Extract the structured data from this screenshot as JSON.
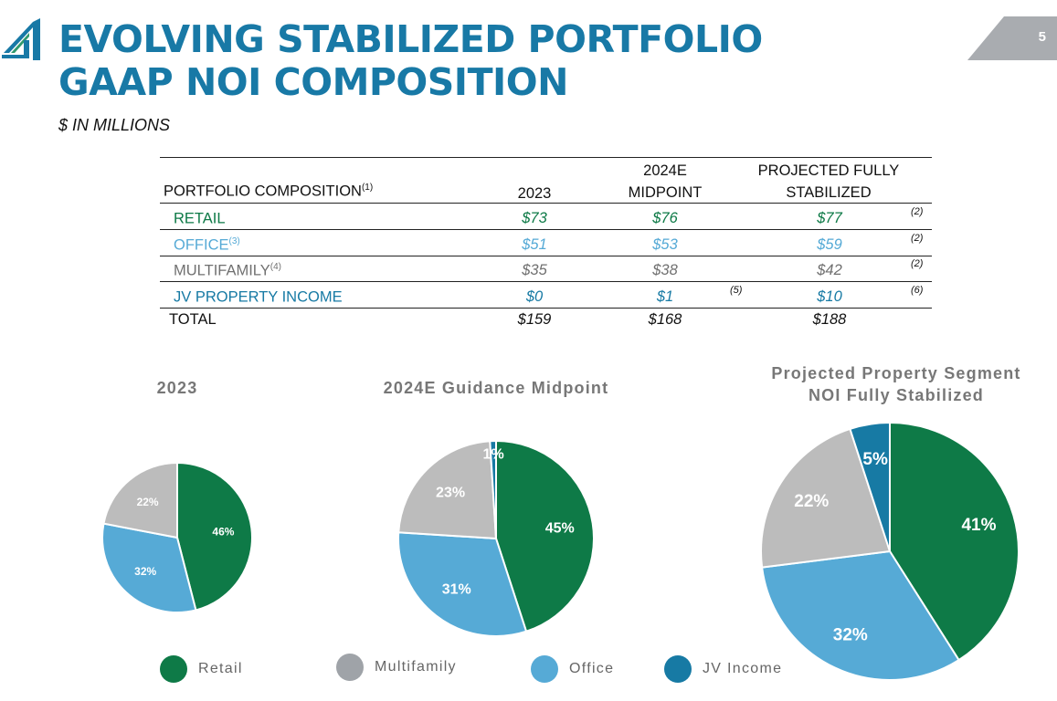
{
  "header": {
    "title_line1": "EVOLVING STABILIZED PORTFOLIO",
    "title_line2": "GAAP NOI COMPOSITION",
    "subtitle": "$ IN MILLIONS",
    "page_number": "5"
  },
  "logo": {
    "icon": "company-logo-icon",
    "color": "#1879a6"
  },
  "table": {
    "headers": {
      "label": "PORTFOLIO COMPOSITION",
      "label_note": "(1)",
      "col_2023": "2023",
      "col_2024_line1": "2024E",
      "col_2024_line2": "MIDPOINT",
      "col_proj_line1": "PROJECTED FULLY",
      "col_proj_line2": "STABILIZED"
    },
    "rows": [
      {
        "label": "RETAIL",
        "sup": "",
        "v2023": "$73",
        "v2024": "$76",
        "v2024_note": "",
        "vproj": "$77",
        "vproj_note": "(2)"
      },
      {
        "label": "OFFICE",
        "sup": "(3)",
        "v2023": "$51",
        "v2024": "$53",
        "v2024_note": "",
        "vproj": "$59",
        "vproj_note": "(2)"
      },
      {
        "label": "MULTIFAMILY",
        "sup": "(4)",
        "v2023": "$35",
        "v2024": "$38",
        "v2024_note": "",
        "vproj": "$42",
        "vproj_note": "(2)"
      },
      {
        "label": "JV PROPERTY INCOME",
        "sup": "",
        "v2023": "$0",
        "v2024": "$1",
        "v2024_note": "(5)",
        "vproj": "$10",
        "vproj_note": "(6)"
      }
    ],
    "total": {
      "label": "TOTAL",
      "v2023": "$159",
      "v2024": "$168",
      "vproj": "$188"
    }
  },
  "colors": {
    "retail": "#0e7a47",
    "office": "#56aad6",
    "multifamily": "#bcbcbc",
    "jv_income": "#177aa4",
    "legend_multifamily": "#9fa3a8",
    "accent": "#1879a6"
  },
  "chart_data": [
    {
      "type": "pie",
      "title": "2023",
      "slices": [
        {
          "name": "Retail",
          "value": 46,
          "label": "46%"
        },
        {
          "name": "Office",
          "value": 32,
          "label": "32%"
        },
        {
          "name": "Multifamily",
          "value": 22,
          "label": "22%"
        }
      ]
    },
    {
      "type": "pie",
      "title": "2024E Guidance Midpoint",
      "slices": [
        {
          "name": "Retail",
          "value": 45,
          "label": "45%"
        },
        {
          "name": "Office",
          "value": 31,
          "label": "31%"
        },
        {
          "name": "Multifamily",
          "value": 23,
          "label": "23%"
        },
        {
          "name": "JV Income",
          "value": 1,
          "label": "1%"
        }
      ]
    },
    {
      "type": "pie",
      "title_line1": "Projected Property Segment",
      "title_line2": "NOI Fully Stabilized",
      "slices": [
        {
          "name": "Retail",
          "value": 41,
          "label": "41%"
        },
        {
          "name": "Office",
          "value": 32,
          "label": "32%"
        },
        {
          "name": "Multifamily",
          "value": 22,
          "label": "22%"
        },
        {
          "name": "JV Income",
          "value": 5,
          "label": "5%"
        }
      ]
    }
  ],
  "legend": {
    "placement": "bottom",
    "items": [
      {
        "label": "Retail",
        "color": "#0e7a47"
      },
      {
        "label": "Multifamily",
        "color": "#9fa3a8"
      },
      {
        "label": "Office",
        "color": "#56aad6"
      },
      {
        "label": "JV Income",
        "color": "#177aa4"
      }
    ]
  }
}
